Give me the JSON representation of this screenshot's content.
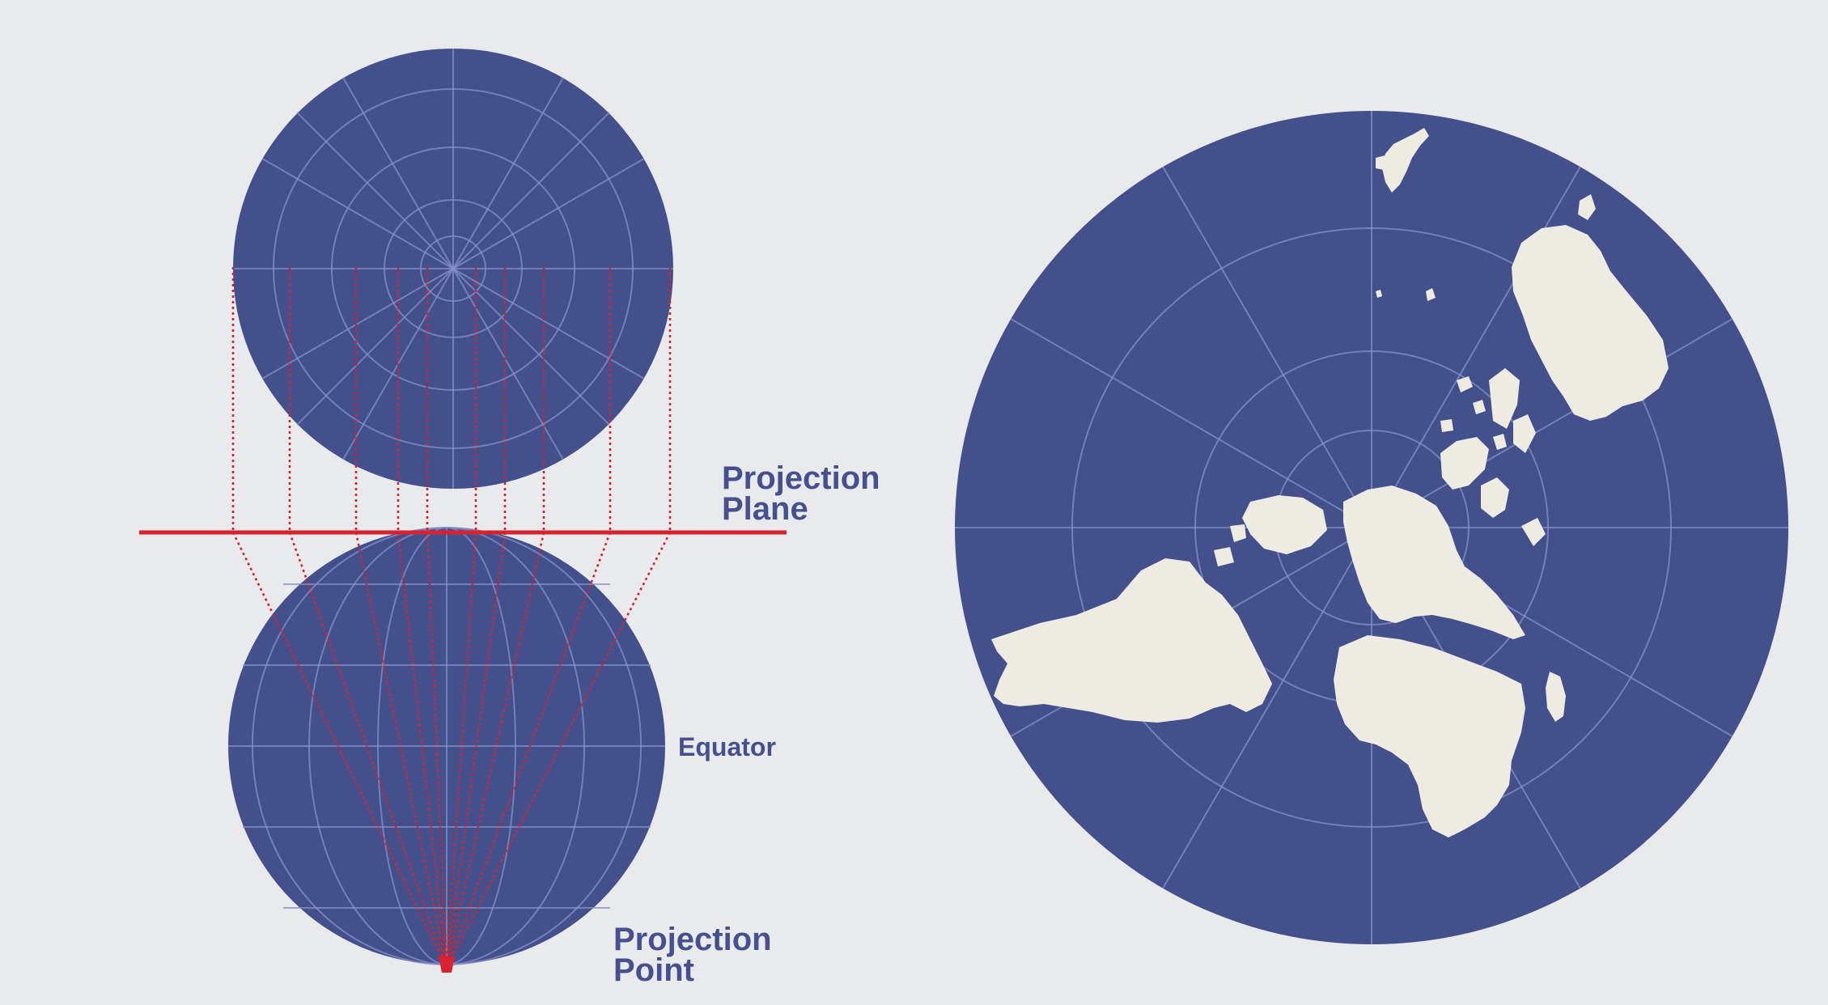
{
  "labels": {
    "projection_plane_line1": "Projection",
    "projection_plane_line2": "Plane",
    "equator": "Equator",
    "projection_point_line1": "Projection",
    "projection_point_line2": "Point"
  },
  "colors": {
    "globe": "#43508c",
    "ray": "#d6232f",
    "land": "#eeece2",
    "background": "#e9eaec",
    "label": "#45508f"
  }
}
